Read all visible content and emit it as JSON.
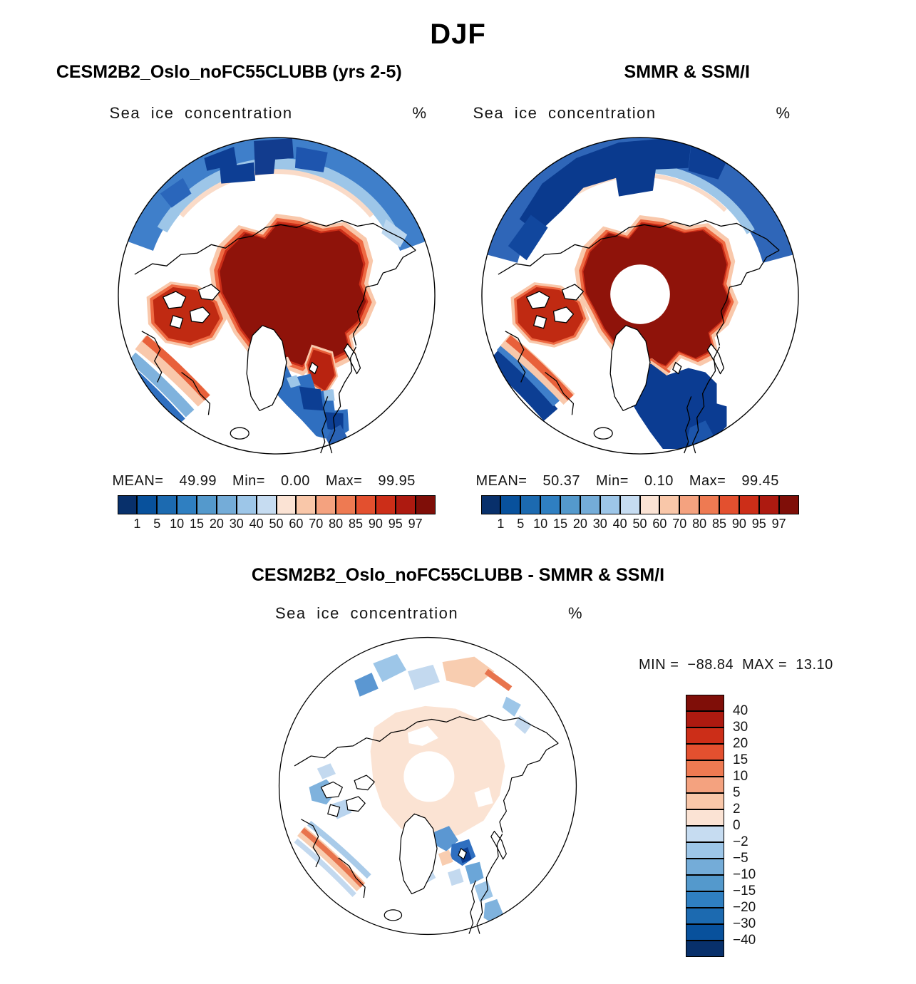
{
  "figure": {
    "season_title": "DJF",
    "model_title": "CESM2B2_Oslo_noFC55CLUBB (yrs 2-5)",
    "obs_title": "SMMR & SSM/I",
    "diff_title": "CESM2B2_Oslo_noFC55CLUBB - SMMR & SSM/I"
  },
  "labels": {
    "field": "Sea ice concentration",
    "units": "%"
  },
  "model_stats": {
    "mean_label": "MEAN=",
    "mean": "49.99",
    "min_label": "Min=",
    "min": "0.00",
    "max_label": "Max=",
    "max": "99.95"
  },
  "obs_stats": {
    "mean_label": "MEAN=",
    "mean": "50.37",
    "min_label": "Min=",
    "min": "0.10",
    "max_label": "Max=",
    "max": "99.45"
  },
  "diff_stats": {
    "min_label": "MIN =",
    "min": "−88.84",
    "max_label": "MAX =",
    "max": "13.10"
  },
  "conc_colorbar": {
    "ticks": [
      "1",
      "5",
      "10",
      "15",
      "20",
      "30",
      "40",
      "50",
      "60",
      "70",
      "80",
      "85",
      "90",
      "95",
      "97"
    ],
    "colors": [
      "#08306b",
      "#08519c",
      "#1c6ab0",
      "#2f7fc1",
      "#5499cc",
      "#74acd8",
      "#9dc6e8",
      "#c6dcf1",
      "#fbe3d4",
      "#f9c7a9",
      "#f4a27f",
      "#ee7a52",
      "#e3502f",
      "#cc2e18",
      "#ad1a10",
      "#7f0e08"
    ]
  },
  "diff_colorbar": {
    "labels": [
      "40",
      "30",
      "20",
      "15",
      "10",
      "5",
      "2",
      "0",
      "−2",
      "−5",
      "−10",
      "−15",
      "−20",
      "−30",
      "−40"
    ],
    "colors": [
      "#7f0e08",
      "#ad1a10",
      "#cc2e18",
      "#e3502f",
      "#ee7a52",
      "#f4a27f",
      "#f9c7a9",
      "#fbe3d4",
      "#c6dcf1",
      "#9dc6e8",
      "#74acd8",
      "#5499cc",
      "#2f7fc1",
      "#1c6ab0",
      "#08519c",
      "#08306b"
    ]
  },
  "chart_data": [
    {
      "type": "heatmap",
      "panel": "model",
      "title": "CESM2B2_Oslo_noFC55CLUBB (yrs 2-5)",
      "season": "DJF",
      "variable": "Sea ice concentration",
      "units": "%",
      "projection": "north polar stereographic",
      "stats": {
        "mean": 49.99,
        "min": 0.0,
        "max": 99.95
      },
      "contour_levels": [
        1,
        5,
        10,
        15,
        20,
        30,
        40,
        50,
        60,
        70,
        80,
        85,
        90,
        95,
        97
      ],
      "palette": "blue (low) to dark red (high)",
      "legend_position": "bottom"
    },
    {
      "type": "heatmap",
      "panel": "observations",
      "title": "SMMR & SSM/I",
      "season": "DJF",
      "variable": "Sea ice concentration",
      "units": "%",
      "projection": "north polar stereographic",
      "stats": {
        "mean": 50.37,
        "min": 0.1,
        "max": 99.45
      },
      "contour_levels": [
        1,
        5,
        10,
        15,
        20,
        30,
        40,
        50,
        60,
        70,
        80,
        85,
        90,
        95,
        97
      ],
      "palette": "blue (low) to dark red (high)",
      "notes": "satellite pole hole shown as white circle at the pole",
      "legend_position": "bottom"
    },
    {
      "type": "heatmap",
      "panel": "difference (model - observations)",
      "title": "CESM2B2_Oslo_noFC55CLUBB - SMMR & SSM/I",
      "season": "DJF",
      "variable": "Sea ice concentration difference",
      "units": "%",
      "projection": "north polar stereographic",
      "stats": {
        "min": -88.84,
        "max": 13.1
      },
      "contour_levels": [
        -40,
        -30,
        -20,
        -15,
        -10,
        -5,
        -2,
        0,
        2,
        5,
        10,
        15,
        20,
        30,
        40
      ],
      "palette": "blue (negative) to red (positive)",
      "legend_position": "right"
    }
  ]
}
